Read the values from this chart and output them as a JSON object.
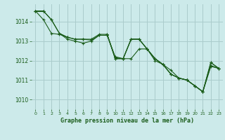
{
  "title": "Graphe pression niveau de la mer (hPa)",
  "bg_color": "#cceaea",
  "grid_color": "#aacccc",
  "line_color": "#1a5c1a",
  "label_color": "#1a5c1a",
  "xlim": [
    -0.5,
    23.5
  ],
  "ylim": [
    1009.5,
    1014.9
  ],
  "yticks": [
    1010,
    1011,
    1012,
    1013,
    1014
  ],
  "xticks": [
    0,
    1,
    2,
    3,
    4,
    5,
    6,
    7,
    8,
    9,
    10,
    11,
    12,
    13,
    14,
    15,
    16,
    17,
    18,
    19,
    20,
    21,
    22,
    23
  ],
  "series": [
    [
      1014.55,
      1014.55,
      1014.1,
      1013.4,
      1013.2,
      1013.1,
      1013.1,
      1013.05,
      1013.3,
      1013.3,
      1012.15,
      1012.1,
      1012.1,
      1012.6,
      1012.6,
      1012.1,
      1011.8,
      1011.3,
      1011.1,
      1011.0,
      1010.7,
      1010.4,
      1011.7,
      1011.6
    ],
    [
      1014.55,
      1014.55,
      1014.1,
      1013.4,
      1013.1,
      1013.0,
      1012.9,
      1013.0,
      1013.3,
      1013.3,
      1012.2,
      1012.1,
      1013.1,
      1013.1,
      1012.6,
      1012.0,
      1011.8,
      1011.3,
      1011.1,
      1011.0,
      1010.7,
      1010.4,
      1011.75,
      1011.6
    ],
    [
      1014.55,
      1014.1,
      1013.4,
      1013.35,
      1013.2,
      1013.1,
      1013.1,
      1013.1,
      1013.35,
      1013.35,
      1012.1,
      1012.1,
      1013.1,
      1013.1,
      1012.6,
      1012.1,
      1011.8,
      1011.3,
      1011.1,
      1011.0,
      1010.7,
      1010.4,
      1011.9,
      1011.6
    ],
    [
      1014.55,
      1014.55,
      null,
      1013.4,
      1013.2,
      null,
      null,
      1013.1,
      null,
      1013.35,
      1012.1,
      1012.1,
      1013.1,
      1013.1,
      1012.6,
      1012.1,
      1011.8,
      1011.5,
      1011.1,
      1011.0,
      1010.7,
      1010.4,
      1011.9,
      1011.6
    ]
  ]
}
